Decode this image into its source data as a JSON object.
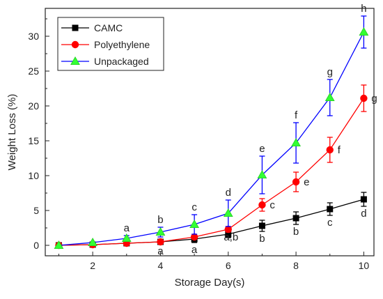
{
  "chart_data": {
    "type": "line",
    "title": "",
    "xlabel": "Storage Day(s)",
    "ylabel": "Weight Loss (%)",
    "xlim": [
      0.6,
      10.3
    ],
    "ylim": [
      -1.5,
      34
    ],
    "xticks": [
      2,
      4,
      6,
      8,
      10
    ],
    "yticks": [
      0,
      5,
      10,
      15,
      20,
      25,
      30
    ],
    "grid": false,
    "legend_position": "top-left",
    "x": [
      1,
      2,
      3,
      4,
      5,
      6,
      7,
      8,
      9,
      10
    ],
    "series": [
      {
        "name": "CAMC",
        "color": "#000000",
        "marker": "square",
        "values": [
          0,
          0.1,
          0.3,
          0.5,
          0.9,
          1.6,
          2.8,
          3.9,
          5.2,
          6.6
        ],
        "errors": [
          0,
          0,
          0,
          0.3,
          0.5,
          0.5,
          0.8,
          0.9,
          0.9,
          1.0
        ],
        "labels": [
          "",
          "",
          "",
          "a",
          "a",
          "a,b",
          "b",
          "b",
          "c",
          "d"
        ]
      },
      {
        "name": "Polyethylene",
        "color": "#ff0000",
        "marker": "circle",
        "values": [
          0,
          0.1,
          0.3,
          0.5,
          1.2,
          2.3,
          5.8,
          9.1,
          13.7,
          21.1
        ],
        "errors": [
          0,
          0,
          0,
          0,
          0.3,
          0.4,
          0.9,
          1.4,
          1.8,
          1.9
        ],
        "labels": [
          "",
          "",
          "",
          "",
          "",
          "",
          "c",
          "e",
          "f",
          "g"
        ]
      },
      {
        "name": "Unpackaged",
        "color": "#0000ff",
        "marker": "triangle",
        "values": [
          0,
          0.4,
          1.0,
          1.9,
          3.0,
          4.6,
          10.1,
          14.7,
          21.2,
          30.6
        ],
        "errors": [
          0,
          0,
          0.4,
          0.7,
          1.4,
          1.9,
          2.7,
          2.9,
          2.6,
          2.3
        ],
        "labels": [
          "",
          "",
          "a",
          "b",
          "c",
          "d",
          "e",
          "f",
          "g",
          "h"
        ]
      }
    ]
  }
}
